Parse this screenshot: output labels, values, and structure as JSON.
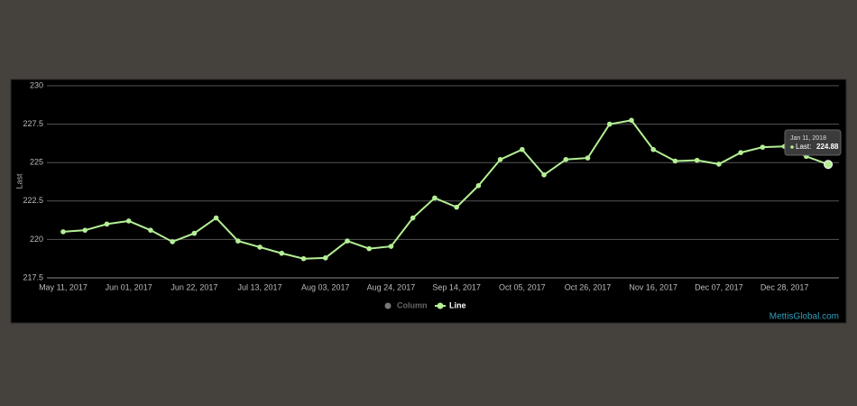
{
  "chart_data": {
    "type": "line",
    "y_label": "Last",
    "categories": [
      "May 11, 2017",
      null,
      null,
      "Jun 01, 2017",
      null,
      null,
      "Jun 22, 2017",
      null,
      null,
      "Jul 13, 2017",
      null,
      null,
      "Aug 03, 2017",
      null,
      null,
      "Aug 24, 2017",
      null,
      null,
      "Sep 14, 2017",
      null,
      null,
      "Oct 05, 2017",
      null,
      null,
      "Oct 26, 2017",
      null,
      null,
      "Nov 16, 2017",
      null,
      null,
      "Dec 07, 2017",
      null,
      null,
      "Dec 28, 2017",
      null,
      null
    ],
    "series": [
      {
        "color": "#b4ef95",
        "values": [
          220.5,
          220.6,
          221.0,
          221.2,
          220.6,
          219.85,
          220.4,
          221.4,
          219.9,
          219.5,
          219.1,
          218.75,
          218.8,
          219.9,
          219.4,
          219.55,
          221.4,
          222.7,
          222.1,
          223.5,
          225.2,
          225.85,
          224.2,
          225.2,
          225.3,
          227.5,
          227.75,
          225.85,
          225.1,
          225.15,
          224.9,
          225.65,
          226.0,
          226.05,
          225.4,
          224.88
        ]
      }
    ],
    "ylim": [
      217.5,
      230
    ],
    "yticks": [
      217.5,
      220,
      222.5,
      225,
      227.5,
      230
    ],
    "grid": true,
    "legend": [
      {
        "name": "Column",
        "color": "#777777",
        "visible": false
      },
      {
        "name": "Line",
        "color": "#b4ef95",
        "visible": true
      }
    ],
    "tooltip": {
      "date": "Jan 11, 2018",
      "label": "Last:"
    },
    "credit": "MettisGlobal.com"
  }
}
